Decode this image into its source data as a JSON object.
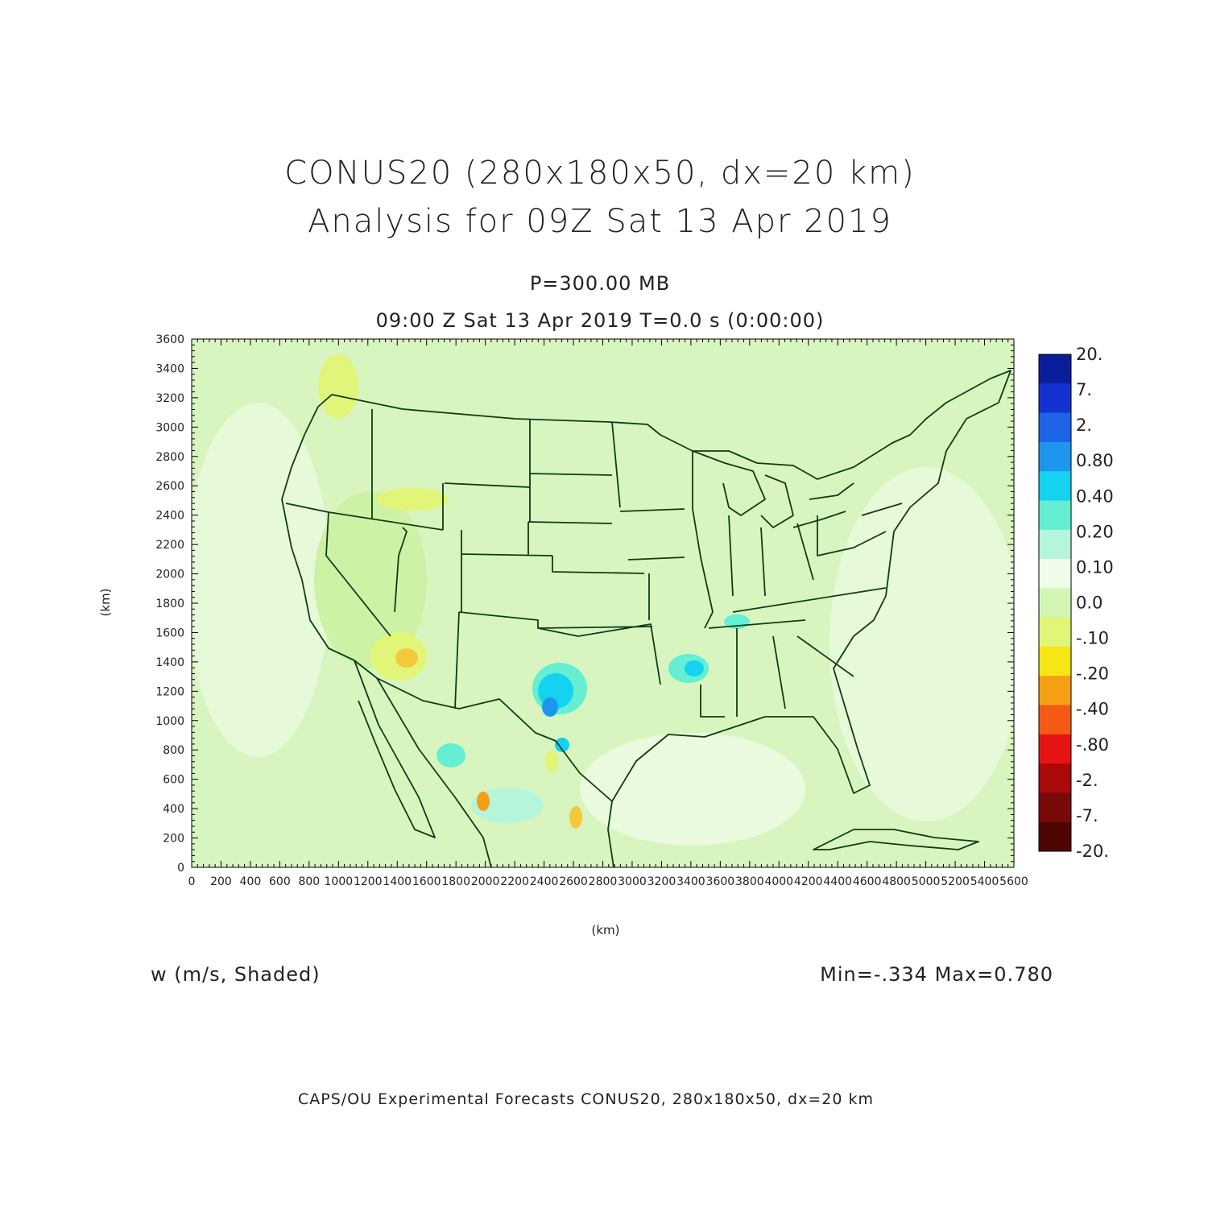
{
  "header": {
    "title_line1": "CONUS20 (280x180x50, dx=20 km)",
    "title_line2": "Analysis for 09Z Sat 13 Apr 2019",
    "level": "P=300.00 MB",
    "valid_time": "09:00 Z Sat 13 Apr 2019    T=0.0 s (0:00:00)"
  },
  "axes": {
    "x_label": "(km)",
    "y_label": "(km)",
    "x_ticks": [
      "0",
      "200",
      "400",
      "600",
      "800",
      "1000",
      "1200",
      "1400",
      "1600",
      "1800",
      "2000",
      "2200",
      "2400",
      "2600",
      "2800",
      "3000",
      "3200",
      "3400",
      "3600",
      "3800",
      "4000",
      "4200",
      "4400",
      "4600",
      "4800",
      "5000",
      "5200",
      "5400",
      "5600"
    ],
    "y_ticks": [
      "0",
      "200",
      "400",
      "600",
      "800",
      "1000",
      "1200",
      "1400",
      "1600",
      "1800",
      "2000",
      "2200",
      "2400",
      "2600",
      "2800",
      "3000",
      "3200",
      "3400",
      "3600"
    ],
    "x_range": [
      0,
      5600
    ],
    "y_range": [
      0,
      3600
    ]
  },
  "colorbar": {
    "labels": [
      "20.",
      "7.",
      "2.",
      "0.80",
      "0.40",
      "0.20",
      "0.10",
      "0.0",
      "-.10",
      "-.20",
      "-.40",
      "-.80",
      "-2.",
      "-7.",
      "-20."
    ],
    "colors": [
      "#0a1e9c",
      "#1432d2",
      "#1e64e6",
      "#1e96ee",
      "#14d2f0",
      "#64eed2",
      "#b4f5dc",
      "#f0fcea",
      "#d2f5b4",
      "#e1f578",
      "#f5e614",
      "#f5a014",
      "#f55a14",
      "#e61414",
      "#aa0a0a",
      "#780a0a",
      "#500505"
    ]
  },
  "field": {
    "variable": "w (m/s, Shaded)",
    "stats": "Min=-.334 Max=0.780",
    "background_color": "#d8f5c0",
    "boundary_color": "#0d3d14"
  },
  "footer": "CAPS/OU Experimental Forecasts  CONUS20, 280x180x50, dx=20 km"
}
